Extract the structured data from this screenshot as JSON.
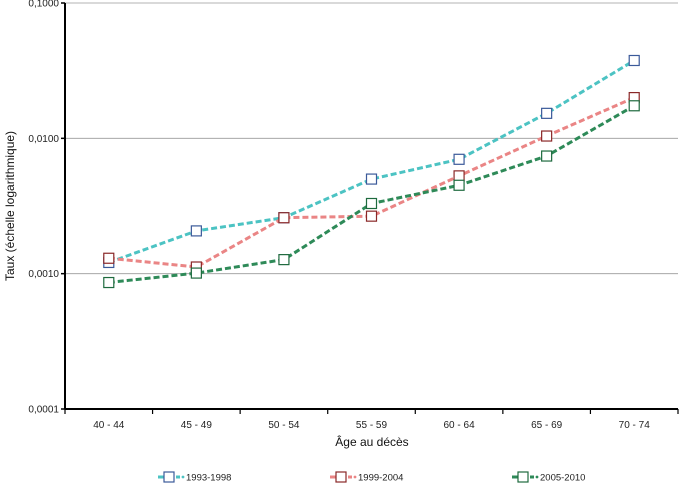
{
  "chart_data": {
    "type": "line",
    "xlabel": "Âge au décès",
    "ylabel": "Taux (échelle logarithmique)",
    "yscale": "log",
    "ylim": [
      0.0001,
      0.1
    ],
    "yticks": [
      {
        "value": 0.1,
        "label": "0,1000"
      },
      {
        "value": 0.01,
        "label": "0,0100"
      },
      {
        "value": 0.001,
        "label": "0,0010"
      },
      {
        "value": 0.0001,
        "label": "0,0001"
      }
    ],
    "grid": "horizontal",
    "legend_position": "bottom",
    "categories": [
      "40 - 44",
      "45 - 49",
      "50 - 54",
      "55 - 59",
      "60 - 64",
      "65 - 69",
      "70 - 74"
    ],
    "series": [
      {
        "name": "1993-1998",
        "color": "#4cc3c3",
        "marker_color": "#3b5a9a",
        "values": [
          0.00121,
          0.00207,
          0.00259,
          0.005,
          0.007,
          0.0153,
          0.0376
        ]
      },
      {
        "name": "1999-2004",
        "color": "#ea8585",
        "marker_color": "#8a2828",
        "values": [
          0.0013,
          0.00112,
          0.00259,
          0.00266,
          0.00528,
          0.0104,
          0.02
        ]
      },
      {
        "name": "2005-2010",
        "color": "#2e8a58",
        "marker_color": "#1e6a3e",
        "values": [
          0.00086,
          0.00101,
          0.00127,
          0.0033,
          0.0045,
          0.0074,
          0.0174
        ]
      }
    ]
  }
}
